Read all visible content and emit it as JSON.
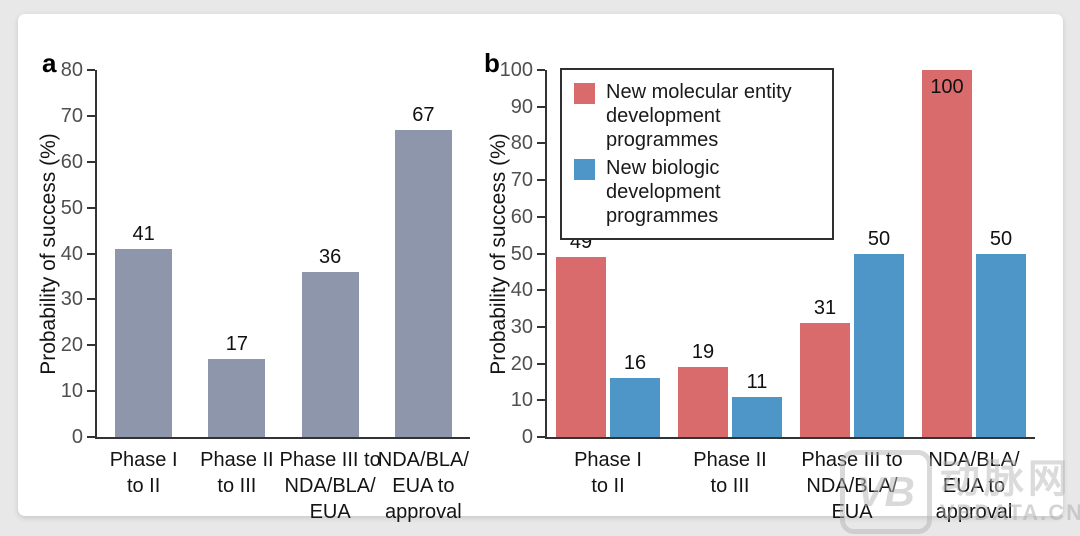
{
  "colors": {
    "background": "#e8e8e8",
    "panel": "#ffffff",
    "axis": "#333333",
    "tick_label": "#4f4f4f",
    "text": "#141414",
    "bar_gray": "#8D96AA",
    "bar_red": "#D96B6D",
    "bar_blue": "#4F96C8"
  },
  "watermark": {
    "logo_text": "VB",
    "brand_text": "动脉网",
    "site_text": "VBDATA.CN"
  },
  "chart_data": [
    {
      "type": "bar",
      "panel_label": "a",
      "title": "",
      "xlabel": "",
      "ylabel": "Probability of success (%)",
      "ylim": [
        0,
        80
      ],
      "yticks": [
        0,
        10,
        20,
        30,
        40,
        50,
        60,
        70,
        80
      ],
      "grid": false,
      "legend_position": "none",
      "categories": [
        [
          "Phase I",
          "to II"
        ],
        [
          "Phase II",
          "to III"
        ],
        [
          "Phase III to",
          "NDA/BLA/",
          "EUA"
        ],
        [
          "NDA/BLA/",
          "EUA to",
          "approval"
        ]
      ],
      "series": [
        {
          "color": "#8D96AA",
          "values": [
            41,
            17,
            36,
            67
          ]
        }
      ]
    },
    {
      "type": "bar",
      "panel_label": "b",
      "title": "",
      "xlabel": "",
      "ylabel": "Probability of success (%)",
      "ylim": [
        0,
        100
      ],
      "yticks": [
        0,
        10,
        20,
        30,
        40,
        50,
        60,
        70,
        80,
        90,
        100
      ],
      "grid": false,
      "legend_position": "top-left-inside",
      "categories": [
        [
          "Phase I",
          "to II"
        ],
        [
          "Phase II",
          "to III"
        ],
        [
          "Phase III to",
          "NDA/BLA/",
          "EUA"
        ],
        [
          "NDA/BLA/",
          "EUA to",
          "approval"
        ]
      ],
      "series": [
        {
          "name": "New molecular entity development programmes",
          "color": "#D96B6D",
          "values": [
            49,
            19,
            31,
            100
          ]
        },
        {
          "name": "New biologic development programmes",
          "color": "#4F96C8",
          "values": [
            16,
            11,
            50,
            50
          ]
        }
      ]
    }
  ]
}
